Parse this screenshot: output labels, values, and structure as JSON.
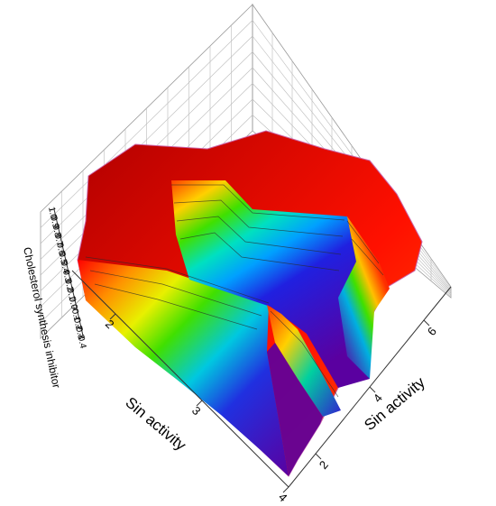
{
  "chart_data": {
    "type": "surface3d",
    "title": "",
    "xlabel": "Sin activity",
    "ylabel": "Sin activity",
    "zlabel": "Cholesterol synthesis inhibitor",
    "x_ticks": [
      "2",
      "3",
      "4"
    ],
    "y_ticks": [
      "2",
      "4",
      "6"
    ],
    "z_ticks": [
      "1.0",
      "0.9",
      "0.8",
      "0.7",
      "0.6",
      "0.5",
      "0.4",
      "0.3",
      "0.2",
      "0.1",
      "0.0",
      "-0.1",
      "-0.2",
      "-0.3",
      "-0.4"
    ],
    "xlim": [
      1.5,
      4
    ],
    "ylim": [
      1,
      7
    ],
    "zlim": [
      -0.4,
      1.0
    ],
    "colormap": [
      "#5a00a0",
      "#2020e0",
      "#00a0ff",
      "#00e0c0",
      "#40e000",
      "#e0f000",
      "#ffa000",
      "#ff2000",
      "#d00000"
    ],
    "grid": true,
    "contour_lines": true
  }
}
